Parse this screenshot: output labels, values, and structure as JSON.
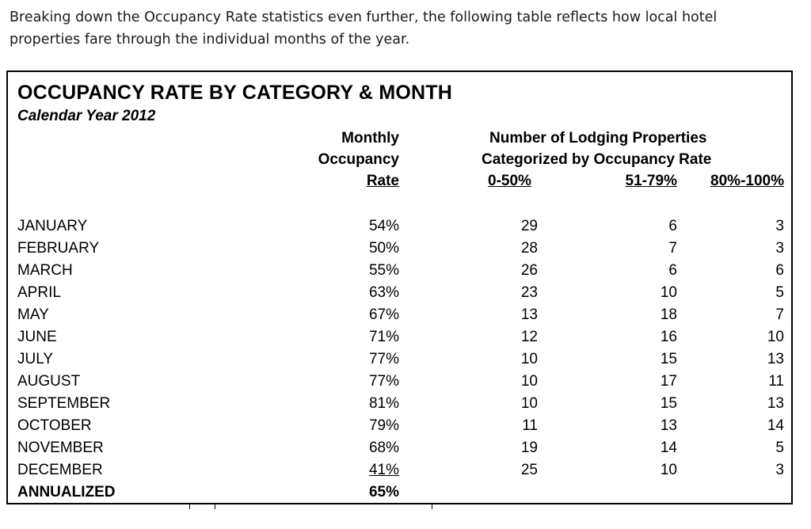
{
  "intro": {
    "line1": "Breaking down the Occupancy Rate statistics even further, the following table reflects how local hotel",
    "line2": "properties fare through the individual months of the year."
  },
  "table": {
    "title": "OCCUPANCY RATE BY CATEGORY & MONTH",
    "subtitle": "Calendar Year 2012",
    "headers": {
      "rate_line1": "Monthly",
      "rate_line2": "Occupancy",
      "rate_line3": "Rate",
      "group_line1": "Number of Lodging Properties",
      "group_line2": "Categorized by Occupancy Rate",
      "cat1": "0-50%",
      "cat2": "51-79%",
      "cat3": "80%-100%"
    },
    "rows": [
      {
        "month": "JANUARY",
        "rate": "54%",
        "c1": "29",
        "c2": "6",
        "c3": "3"
      },
      {
        "month": "FEBRUARY",
        "rate": "50%",
        "c1": "28",
        "c2": "7",
        "c3": "3"
      },
      {
        "month": "MARCH",
        "rate": "55%",
        "c1": "26",
        "c2": "6",
        "c3": "6"
      },
      {
        "month": "APRIL",
        "rate": "63%",
        "c1": "23",
        "c2": "10",
        "c3": "5"
      },
      {
        "month": "MAY",
        "rate": "67%",
        "c1": "13",
        "c2": "18",
        "c3": "7"
      },
      {
        "month": "JUNE",
        "rate": "71%",
        "c1": "12",
        "c2": "16",
        "c3": "10"
      },
      {
        "month": "JULY",
        "rate": "77%",
        "c1": "10",
        "c2": "15",
        "c3": "13"
      },
      {
        "month": "AUGUST",
        "rate": "77%",
        "c1": "10",
        "c2": "17",
        "c3": "11"
      },
      {
        "month": "SEPTEMBER",
        "rate": "81%",
        "c1": "10",
        "c2": "15",
        "c3": "13"
      },
      {
        "month": "OCTOBER",
        "rate": "79%",
        "c1": "11",
        "c2": "13",
        "c3": "14"
      },
      {
        "month": "NOVEMBER",
        "rate": "68%",
        "c1": "19",
        "c2": "14",
        "c3": "5"
      },
      {
        "month": "DECEMBER",
        "rate": "41%",
        "c1": "25",
        "c2": "10",
        "c3": "3"
      }
    ],
    "annualized": {
      "label": "ANNUALIZED",
      "rate": "65%"
    }
  }
}
